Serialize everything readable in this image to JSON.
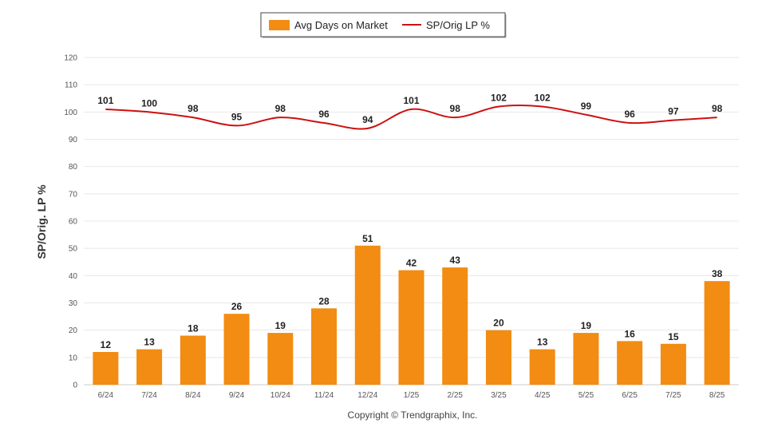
{
  "chart_data": {
    "type": "bar",
    "categories": [
      "6/24",
      "7/24",
      "8/24",
      "9/24",
      "10/24",
      "11/24",
      "12/24",
      "1/25",
      "2/25",
      "3/25",
      "4/25",
      "5/25",
      "6/25",
      "7/25",
      "8/25"
    ],
    "series": [
      {
        "name": "Avg Days on Market",
        "type": "bar",
        "color": "#F28C12",
        "values": [
          12,
          13,
          18,
          26,
          19,
          28,
          51,
          42,
          43,
          20,
          13,
          19,
          16,
          15,
          38
        ]
      },
      {
        "name": "SP/Orig LP %",
        "type": "line",
        "color": "#CC1111",
        "values": [
          101,
          100,
          98,
          95,
          98,
          96,
          94,
          101,
          98,
          102,
          102,
          99,
          96,
          97,
          98
        ]
      }
    ],
    "ylabel": "SP/Orig. LP %",
    "ylim": [
      0,
      120
    ],
    "yticks": [
      0,
      10,
      20,
      30,
      40,
      50,
      60,
      70,
      80,
      90,
      100,
      110,
      120
    ],
    "grid": true,
    "legend_position": "top-center"
  },
  "footer": {
    "copyright": "Copyright © Trendgraphix, Inc."
  }
}
